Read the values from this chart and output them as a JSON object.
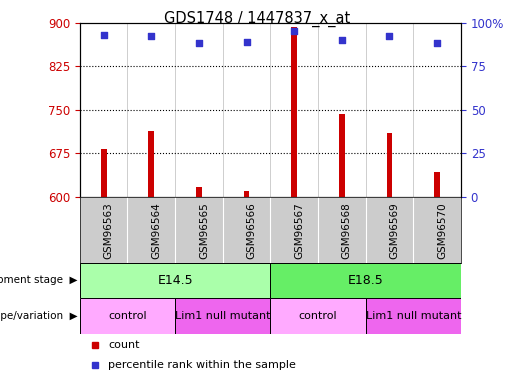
{
  "title": "GDS1748 / 1447837_x_at",
  "samples": [
    "GSM96563",
    "GSM96564",
    "GSM96565",
    "GSM96566",
    "GSM96567",
    "GSM96568",
    "GSM96569",
    "GSM96570"
  ],
  "counts": [
    683,
    713,
    617,
    610,
    893,
    743,
    710,
    643
  ],
  "percentiles": [
    93,
    92,
    88,
    89,
    95,
    90,
    92,
    88
  ],
  "ylim_left": [
    600,
    900
  ],
  "ylim_right": [
    0,
    100
  ],
  "yticks_left": [
    600,
    675,
    750,
    825,
    900
  ],
  "yticks_right": [
    0,
    25,
    50,
    75,
    100
  ],
  "ytick_labels_right": [
    "0",
    "25",
    "50",
    "75",
    "100%"
  ],
  "bar_color": "#CC0000",
  "dot_color": "#3333CC",
  "dev_stage_row": {
    "label": "development stage",
    "groups": [
      {
        "text": "E14.5",
        "start": 0,
        "end": 4,
        "color": "#AAFFAA"
      },
      {
        "text": "E18.5",
        "start": 4,
        "end": 8,
        "color": "#66EE66"
      }
    ]
  },
  "genotype_row": {
    "label": "genotype/variation",
    "groups": [
      {
        "text": "control",
        "start": 0,
        "end": 2,
        "color": "#FFAAFF"
      },
      {
        "text": "Lim1 null mutant",
        "start": 2,
        "end": 4,
        "color": "#EE66EE"
      },
      {
        "text": "control",
        "start": 4,
        "end": 6,
        "color": "#FFAAFF"
      },
      {
        "text": "Lim1 null mutant",
        "start": 6,
        "end": 8,
        "color": "#EE66EE"
      }
    ]
  },
  "label_color_left": "#CC0000",
  "label_color_right": "#3333CC",
  "tick_bg_color": "#CCCCCC"
}
